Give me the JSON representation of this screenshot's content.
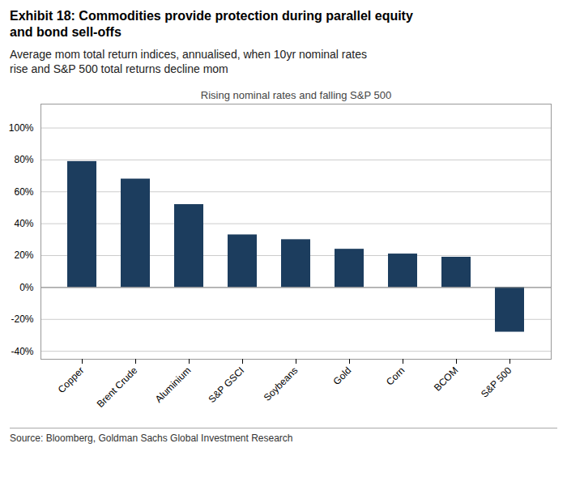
{
  "chart_data": {
    "type": "bar",
    "title": "Exhibit 18: Commodities provide protection during parallel equity\nand bond sell-offs",
    "subtitle": "Average mom total return indices, annualised, when 10yr nominal rates\nrise and S&P 500 total returns decline mom",
    "annotations": [
      "Rising nominal rates and falling S&P 500"
    ],
    "source": "Source: Bloomberg, Goldman Sachs Global Investment Research",
    "categories": [
      "Copper",
      "Brent Crude",
      "Aluminium",
      "S&P GSCI",
      "Soybeans",
      "Gold",
      "Corn",
      "BCOM",
      "S&P 500"
    ],
    "values": [
      79,
      68,
      52,
      33,
      30,
      24,
      21,
      19,
      -28
    ],
    "color": "#1c3d5e",
    "ylim": [
      -45,
      115
    ],
    "yticks": [
      {
        "value": -40,
        "label": "-40%"
      },
      {
        "value": -20,
        "label": "-20%"
      },
      {
        "value": 0,
        "label": "0%"
      },
      {
        "value": 20,
        "label": "20%"
      },
      {
        "value": 40,
        "label": "40%"
      },
      {
        "value": 60,
        "label": "60%"
      },
      {
        "value": 80,
        "label": "80%"
      },
      {
        "value": 100,
        "label": "100%"
      }
    ],
    "grid": true
  }
}
